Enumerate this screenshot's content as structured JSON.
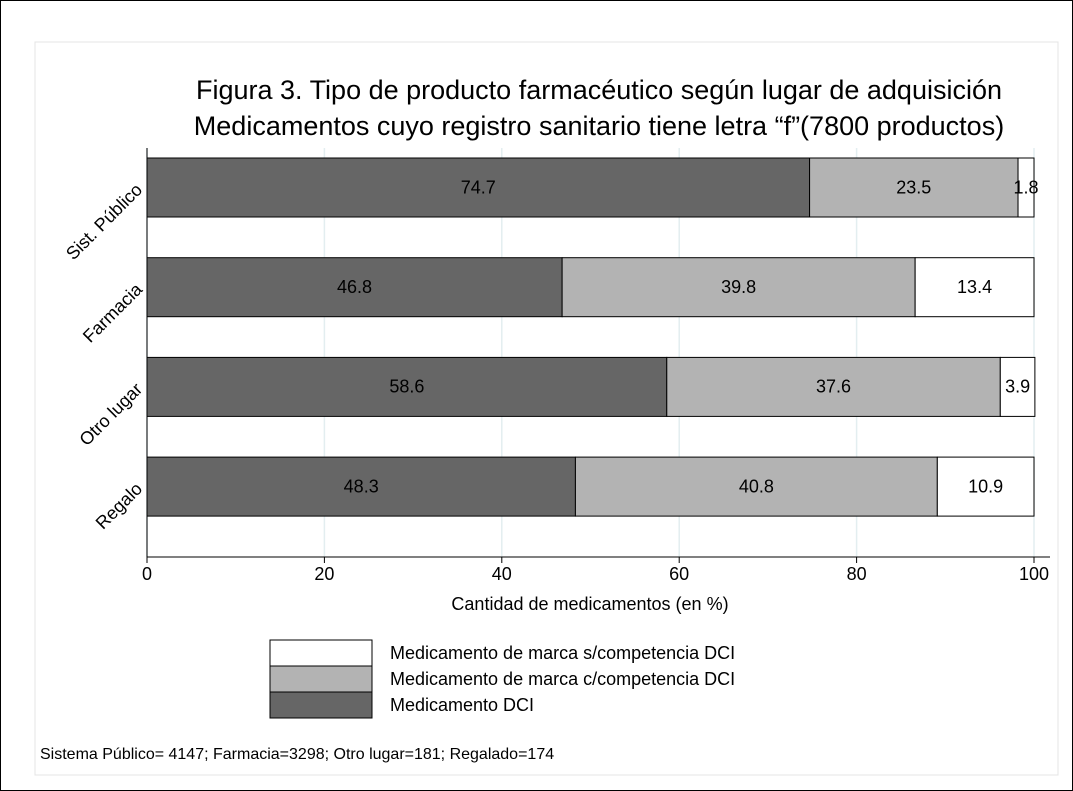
{
  "chart_data": {
    "type": "stacked_barh",
    "title": "Figura 3. Tipo de producto farmacéutico según lugar de adquisición",
    "subtitle": "Medicamentos cuyo registro sanitario tiene letra “f”(7800 productos)",
    "categories": [
      "Sist. Público",
      "Farmacia",
      "Otro lugar",
      "Regalo"
    ],
    "series": [
      {
        "name": "Medicamento DCI",
        "color": "#666666",
        "values": [
          74.7,
          46.8,
          58.6,
          48.3
        ]
      },
      {
        "name": "Medicamento de marca c/competencia DCI",
        "color": "#b3b3b3",
        "values": [
          23.5,
          39.8,
          37.6,
          40.8
        ]
      },
      {
        "name": "Medicamento de marca s/competencia DCI",
        "color": "#ffffff",
        "values": [
          1.8,
          13.4,
          3.9,
          10.9
        ]
      }
    ],
    "xlabel": "Cantidad de medicamentos (en %)",
    "xlim": [
      0,
      100
    ],
    "xticks": [
      0,
      20,
      40,
      60,
      80,
      100
    ],
    "grid": true,
    "note": "Sistema Público= 4147; Farmacia=3298; Otro lugar=181;  Regalado=174"
  }
}
